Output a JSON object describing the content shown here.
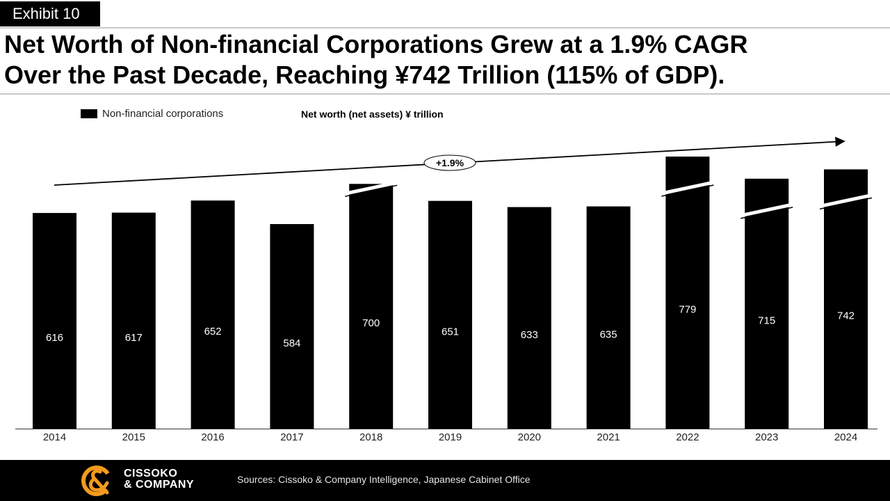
{
  "exhibit": "Exhibit 10",
  "title_lines": [
    "Net Worth of Non-financial Corporations Grew at a 1.9% CAGR",
    "Over the Past Decade, Reaching ¥742 Trillion (115% of GDP)."
  ],
  "chart_data": {
    "type": "bar",
    "categories": [
      "2014",
      "2015",
      "2016",
      "2017",
      "2018",
      "2019",
      "2020",
      "2021",
      "2022",
      "2023",
      "2024"
    ],
    "series": [
      {
        "name": "Non-financial corporations",
        "values": [
          616,
          617,
          652,
          584,
          700,
          651,
          633,
          635,
          779,
          715,
          742
        ]
      }
    ],
    "legend_label": "Non-financial corporations",
    "unit_label": "Net worth (net assets) ¥ trillion",
    "trend_label": "+1.9%",
    "axis_break_years": [
      "2018",
      "2022",
      "2023",
      "2024"
    ],
    "legend_position": "top-left",
    "grid": false,
    "bar_color": "#000000",
    "value_label_color": "#ffffff"
  },
  "footer": {
    "brand_line1": "CISSOKO",
    "brand_line2": "& COMPANY",
    "sources": "Sources: Cissoko & Company Intelligence, Japanese Cabinet Office",
    "brand_color": "#f39a1e"
  }
}
